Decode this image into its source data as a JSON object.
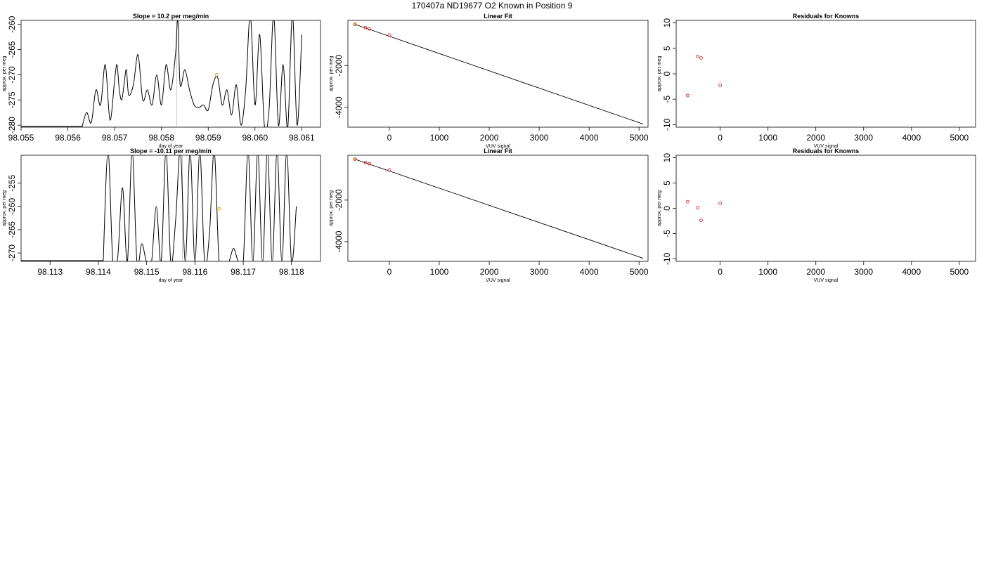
{
  "figure": {
    "title": "170407a     ND19677   O2 Known in Position  9"
  },
  "colors": {
    "line": "#000000",
    "point_known": "#cc3333",
    "point_highlight": "#ff9900",
    "vline": "#bbbbbb"
  },
  "chart_data": [
    {
      "id": "p1",
      "type": "line",
      "title": "Slope =   10.2  per meg/min",
      "xlabel": "day of year",
      "ylabel": "approx. per meg",
      "xlim": [
        98.055,
        98.0614
      ],
      "ylim": [
        -280.4,
        -259.2
      ],
      "xticks": [
        "98.055",
        "98.056",
        "98.057",
        "98.058",
        "98.059",
        "98.060",
        "98.061"
      ],
      "xtick_values": [
        98.055,
        98.056,
        98.057,
        98.058,
        98.059,
        98.06,
        98.061
      ],
      "yticks": [
        "-280",
        "-275",
        "-270",
        "-265",
        "-260"
      ],
      "ytick_values": [
        -280,
        -275,
        -270,
        -265,
        -260
      ],
      "vline_x": 98.05833,
      "highlight_point": {
        "x": 98.05918,
        "y": -270.0
      },
      "series_x": [
        98.0563,
        98.0564,
        98.0565,
        98.0566,
        98.0567,
        98.0568,
        98.0569,
        98.057,
        98.05705,
        98.0571,
        98.05715,
        98.0572,
        98.05725,
        98.0573,
        98.0574,
        98.0575,
        98.0576,
        98.0577,
        98.0578,
        98.0579,
        98.058,
        98.0581,
        98.0582,
        98.0583,
        98.05835,
        98.0584,
        98.0585,
        98.0586,
        98.0587,
        98.0588,
        98.0589,
        98.059,
        98.0591,
        98.0592,
        98.0593,
        98.0594,
        98.0595,
        98.0596,
        98.0597,
        98.0598,
        98.0599,
        98.06,
        98.0601,
        98.0602,
        98.0603,
        98.0604,
        98.0605,
        98.0606,
        98.0607,
        98.0608,
        98.0609,
        98.061
      ],
      "series_y": [
        -280.5,
        -277.5,
        -279.5,
        -273,
        -276,
        -268,
        -279,
        -271,
        -268,
        -273,
        -275,
        -272,
        -269,
        -274,
        -272,
        -266,
        -275,
        -273,
        -276,
        -270,
        -276,
        -268,
        -273,
        -266,
        -259,
        -272,
        -269,
        -273,
        -276,
        -276.5,
        -276,
        -277,
        -272,
        -270.5,
        -276,
        -273,
        -278,
        -272,
        -280,
        -273,
        -258,
        -276,
        -262,
        -280,
        -277,
        -258,
        -280,
        -268,
        -280.5,
        -258,
        -280,
        -262
      ],
      "points": []
    },
    {
      "id": "p2",
      "type": "scatter",
      "title": "Linear Fit",
      "xlabel": "VUV signal",
      "ylabel": "approx. per meg",
      "xlim": [
        -830,
        5180
      ],
      "ylim": [
        -4950,
        160
      ],
      "xticks": [
        "0",
        "1000",
        "2000",
        "3000",
        "4000",
        "5000"
      ],
      "xtick_values": [
        0,
        1000,
        2000,
        3000,
        4000,
        5000
      ],
      "yticks": [
        "-4000",
        "-2000"
      ],
      "ytick_values": [
        -4000,
        -2000
      ],
      "fit_line": {
        "x": [
          -690,
          5080
        ],
        "y": [
          -30,
          -4800
        ]
      },
      "points": [
        {
          "x": -690,
          "y": -30,
          "c": "highlight"
        },
        {
          "x": -480,
          "y": -190
        },
        {
          "x": -400,
          "y": -250
        },
        {
          "x": 0,
          "y": -550
        }
      ]
    },
    {
      "id": "p3",
      "type": "scatter",
      "title": "Residuals for Knowns",
      "xlabel": "VUV signal",
      "ylabel": "approx. per meg",
      "xlim": [
        -920,
        5340
      ],
      "ylim": [
        -10.5,
        10.5
      ],
      "xticks": [
        "0",
        "1000",
        "2000",
        "3000",
        "4000",
        "5000"
      ],
      "xtick_values": [
        0,
        1000,
        2000,
        3000,
        4000,
        5000
      ],
      "yticks": [
        "-10",
        "-5",
        "0",
        "5",
        "10"
      ],
      "ytick_values": [
        -10,
        -5,
        0,
        5,
        10
      ],
      "points": [
        {
          "x": -680,
          "y": -4.3
        },
        {
          "x": -470,
          "y": 3.4
        },
        {
          "x": -400,
          "y": 3.1
        },
        {
          "x": 0,
          "y": -2.3
        }
      ]
    },
    {
      "id": "p4",
      "type": "line",
      "title": "Slope =   -10.11  per meg/min",
      "xlabel": "day of year",
      "ylabel": "approx. per meg",
      "xlim": [
        98.1124,
        98.1186
      ],
      "ylim": [
        -271.8,
        -249.0
      ],
      "xticks": [
        "98.113",
        "98.114",
        "98.115",
        "98.116",
        "98.117",
        "98.118"
      ],
      "xtick_values": [
        98.113,
        98.114,
        98.115,
        98.116,
        98.117,
        98.118
      ],
      "yticks": [
        "-270",
        "-265",
        "-260",
        "-255"
      ],
      "ytick_values": [
        -270,
        -265,
        -260,
        -255
      ],
      "vline_x": 98.11574,
      "highlight_point": {
        "x": 98.1165,
        "y": -260.5
      },
      "series_x": [
        98.1141,
        98.1142,
        98.1143,
        98.1144,
        98.1145,
        98.1146,
        98.1147,
        98.1148,
        98.1149,
        98.115,
        98.1151,
        98.1152,
        98.1153,
        98.1154,
        98.1155,
        98.1156,
        98.1157,
        98.1158,
        98.1159,
        98.116,
        98.1161,
        98.1162,
        98.1163,
        98.1164,
        98.1165,
        98.1166,
        98.1167,
        98.1168,
        98.1169,
        98.117,
        98.1171,
        98.1172,
        98.1173,
        98.1174,
        98.1175,
        98.1176,
        98.1177,
        98.1178,
        98.1179,
        98.118,
        98.1181
      ],
      "series_y": [
        -272,
        -248,
        -272,
        -271,
        -256,
        -272,
        -248,
        -272,
        -268,
        -272,
        -272,
        -260,
        -272,
        -248,
        -272,
        -263,
        -248,
        -272,
        -248,
        -272,
        -248,
        -272,
        -266,
        -248,
        -272,
        -272,
        -272,
        -269,
        -272,
        -272,
        -248,
        -272,
        -248,
        -272,
        -248,
        -272,
        -248,
        -272,
        -248,
        -272,
        -260
      ],
      "points": []
    },
    {
      "id": "p5",
      "type": "scatter",
      "title": "Linear Fit",
      "xlabel": "VUV signal",
      "ylabel": "approx. per meg",
      "xlim": [
        -830,
        5180
      ],
      "ylim": [
        -4950,
        160
      ],
      "xticks": [
        "0",
        "1000",
        "2000",
        "3000",
        "4000",
        "5000"
      ],
      "xtick_values": [
        0,
        1000,
        2000,
        3000,
        4000,
        5000
      ],
      "yticks": [
        "-4000",
        "-2000"
      ],
      "ytick_values": [
        -4000,
        -2000
      ],
      "fit_line": {
        "x": [
          -690,
          5080
        ],
        "y": [
          -30,
          -4800
        ]
      },
      "points": [
        {
          "x": -690,
          "y": -30,
          "c": "highlight"
        },
        {
          "x": -480,
          "y": -190
        },
        {
          "x": -400,
          "y": -250
        },
        {
          "x": 0,
          "y": -550
        }
      ]
    },
    {
      "id": "p6",
      "type": "scatter",
      "title": "Residuals for Knowns",
      "xlabel": "VUV signal",
      "ylabel": "approx. per meg",
      "xlim": [
        -920,
        5340
      ],
      "ylim": [
        -10.5,
        10.5
      ],
      "xticks": [
        "0",
        "1000",
        "2000",
        "3000",
        "4000",
        "5000"
      ],
      "xtick_values": [
        0,
        1000,
        2000,
        3000,
        4000,
        5000
      ],
      "yticks": [
        "-10",
        "-5",
        "0",
        "5",
        "10"
      ],
      "ytick_values": [
        -10,
        -5,
        0,
        5,
        10
      ],
      "points": [
        {
          "x": -680,
          "y": 1.3
        },
        {
          "x": -470,
          "y": 0.1
        },
        {
          "x": -400,
          "y": -2.4
        },
        {
          "x": 0,
          "y": 1.0
        }
      ]
    }
  ]
}
